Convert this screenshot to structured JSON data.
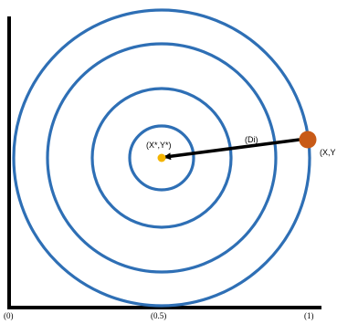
{
  "diagram": {
    "ring_color": "#2e6fb5",
    "center_point": {
      "label": "(X*,Y*)",
      "color": "#f4b400"
    },
    "outer_point": {
      "label": "(X,Y",
      "color": "#c85a17"
    },
    "distance_label": "(Di)",
    "axis": {
      "ticks": [
        "(0)",
        "(0.5)",
        "(1)"
      ]
    },
    "ring_count": 4
  }
}
